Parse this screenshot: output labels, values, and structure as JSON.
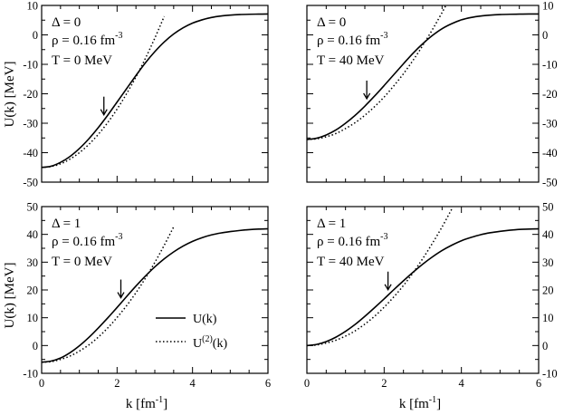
{
  "figure": {
    "xlabel": "k [fm",
    "xlabel_sup": "-1",
    "xlabel_close": "]",
    "ylabel_top": "U(k)  [MeV]",
    "ylabel_bottom": "U(k) [MeV]"
  },
  "legend": {
    "solid_label": "U(k)",
    "dotted_label_main": "U",
    "dotted_label_sup": "(2)",
    "dotted_label_tail": "(k)"
  },
  "chart_data": [
    {
      "type": "line",
      "position": "top-left",
      "xlim": [
        0,
        6
      ],
      "ylim": [
        -50,
        10
      ],
      "xticks": [
        0,
        2,
        4,
        6
      ],
      "yticks": [
        -50,
        -40,
        -30,
        -20,
        -10,
        0,
        10
      ],
      "y_tick_side": "left",
      "show_x_tick_labels": false,
      "annotations": {
        "delta": "Δ = 0",
        "rho": "ρ = 0.16 fm",
        "rho_sup": "-3",
        "temp": "T = 0 MeV"
      },
      "arrow_x": 1.65,
      "series": [
        {
          "name": "U(k)",
          "style": "solid",
          "x": [
            0.0,
            0.25,
            0.5,
            0.75,
            1.0,
            1.25,
            1.5,
            1.75,
            2.0,
            2.25,
            2.5,
            2.75,
            3.0,
            3.25,
            3.5,
            3.75,
            4.0,
            4.25,
            4.5,
            4.75,
            5.0,
            5.25,
            5.5,
            5.75,
            6.0
          ],
          "y": [
            -45.0,
            -44.6,
            -43.3,
            -41.3,
            -38.6,
            -35.3,
            -31.5,
            -27.3,
            -22.8,
            -18.3,
            -13.8,
            -9.5,
            -5.7,
            -2.4,
            0.3,
            2.4,
            4.0,
            5.1,
            5.9,
            6.4,
            6.7,
            6.9,
            7.0,
            7.05,
            7.1
          ]
        },
        {
          "name": "U(2)(k)",
          "style": "dotted",
          "x": [
            0.0,
            0.25,
            0.5,
            0.75,
            1.0,
            1.25,
            1.5,
            1.75,
            2.0,
            2.25,
            2.5,
            2.75,
            3.0,
            3.25
          ],
          "y": [
            -45.0,
            -44.7,
            -43.8,
            -42.2,
            -40.0,
            -37.2,
            -33.8,
            -29.8,
            -25.2,
            -20.0,
            -14.3,
            -8.0,
            -1.1,
            6.3
          ]
        }
      ]
    },
    {
      "type": "line",
      "position": "top-right",
      "xlim": [
        0,
        6
      ],
      "ylim": [
        -50,
        10
      ],
      "xticks": [
        0,
        2,
        4,
        6
      ],
      "yticks": [
        -50,
        -40,
        -30,
        -20,
        -10,
        0,
        10
      ],
      "y_tick_side": "right",
      "show_x_tick_labels": false,
      "annotations": {
        "delta": "Δ = 0",
        "rho": "ρ = 0.16 fm",
        "rho_sup": "-3",
        "temp": "T = 40 MeV"
      },
      "arrow_x": 1.55,
      "series": [
        {
          "name": "U(k)",
          "style": "solid",
          "x": [
            0.0,
            0.25,
            0.5,
            0.75,
            1.0,
            1.25,
            1.5,
            1.75,
            2.0,
            2.25,
            2.5,
            2.75,
            3.0,
            3.25,
            3.5,
            3.75,
            4.0,
            4.25,
            4.5,
            4.75,
            5.0,
            5.25,
            5.5,
            5.75,
            6.0
          ],
          "y": [
            -35.5,
            -35.1,
            -34.0,
            -32.3,
            -30.0,
            -27.3,
            -24.2,
            -20.8,
            -17.2,
            -13.5,
            -9.8,
            -6.2,
            -3.0,
            -0.2,
            2.1,
            3.8,
            5.1,
            5.9,
            6.4,
            6.7,
            6.9,
            7.0,
            7.05,
            7.1,
            7.1
          ]
        },
        {
          "name": "U(2)(k)",
          "style": "dotted",
          "x": [
            0.0,
            0.25,
            0.5,
            0.75,
            1.0,
            1.25,
            1.5,
            1.75,
            2.0,
            2.25,
            2.5,
            2.75,
            3.0,
            3.25,
            3.5,
            3.75
          ],
          "y": [
            -35.5,
            -35.3,
            -34.6,
            -33.5,
            -31.8,
            -29.8,
            -27.3,
            -24.4,
            -21.1,
            -17.3,
            -13.2,
            -8.6,
            -3.6,
            1.8,
            7.6,
            13.8
          ]
        }
      ]
    },
    {
      "type": "line",
      "position": "bottom-left",
      "xlim": [
        0,
        6
      ],
      "ylim": [
        -10,
        50
      ],
      "xticks": [
        0,
        2,
        4,
        6
      ],
      "yticks": [
        -10,
        0,
        10,
        20,
        30,
        40,
        50
      ],
      "y_tick_side": "left",
      "show_x_tick_labels": true,
      "annotations": {
        "delta": "Δ = 1",
        "rho": "ρ = 0.16 fm",
        "rho_sup": "-3",
        "temp": "T = 0 MeV"
      },
      "arrow_x": 2.1,
      "series": [
        {
          "name": "U(k)",
          "style": "solid",
          "x": [
            0.0,
            0.25,
            0.5,
            0.75,
            1.0,
            1.25,
            1.5,
            1.75,
            2.0,
            2.25,
            2.5,
            2.75,
            3.0,
            3.25,
            3.5,
            3.75,
            4.0,
            4.25,
            4.5,
            4.75,
            5.0,
            5.25,
            5.5,
            5.75,
            6.0
          ],
          "y": [
            -6.0,
            -5.6,
            -4.5,
            -2.6,
            -0.1,
            2.9,
            6.3,
            9.9,
            13.7,
            17.6,
            21.4,
            25.0,
            28.3,
            31.2,
            33.7,
            35.8,
            37.5,
            38.8,
            39.8,
            40.5,
            41.0,
            41.4,
            41.7,
            41.9,
            42.0
          ]
        },
        {
          "name": "U(2)(k)",
          "style": "dotted",
          "x": [
            0.0,
            0.25,
            0.5,
            0.75,
            1.0,
            1.25,
            1.5,
            1.75,
            2.0,
            2.25,
            2.5,
            2.75,
            3.0,
            3.25,
            3.5
          ],
          "y": [
            -6.0,
            -5.8,
            -5.0,
            -3.8,
            -2.0,
            0.2,
            3.0,
            6.3,
            10.1,
            14.3,
            19.0,
            24.2,
            29.9,
            36.1,
            42.7
          ]
        }
      ]
    },
    {
      "type": "line",
      "position": "bottom-right",
      "xlim": [
        0,
        6
      ],
      "ylim": [
        -10,
        50
      ],
      "xticks": [
        0,
        2,
        4,
        6
      ],
      "yticks": [
        -10,
        0,
        10,
        20,
        30,
        40,
        50
      ],
      "y_tick_side": "right",
      "show_x_tick_labels": true,
      "annotations": {
        "delta": "Δ = 1",
        "rho": "ρ = 0.16 fm",
        "rho_sup": "-3",
        "temp": "T = 40 MeV"
      },
      "arrow_x": 2.1,
      "series": [
        {
          "name": "U(k)",
          "style": "solid",
          "x": [
            0.0,
            0.25,
            0.5,
            0.75,
            1.0,
            1.25,
            1.5,
            1.75,
            2.0,
            2.25,
            2.5,
            2.75,
            3.0,
            3.25,
            3.5,
            3.75,
            4.0,
            4.25,
            4.5,
            4.75,
            5.0,
            5.25,
            5.5,
            5.75,
            6.0
          ],
          "y": [
            0.0,
            0.4,
            1.4,
            3.0,
            5.1,
            7.6,
            10.5,
            13.6,
            16.8,
            20.1,
            23.3,
            26.4,
            29.3,
            31.9,
            34.2,
            36.1,
            37.7,
            38.9,
            39.9,
            40.6,
            41.1,
            41.5,
            41.8,
            41.9,
            42.0
          ]
        },
        {
          "name": "U(2)(k)",
          "style": "dotted",
          "x": [
            0.0,
            0.25,
            0.5,
            0.75,
            1.0,
            1.25,
            1.5,
            1.75,
            2.0,
            2.25,
            2.5,
            2.75,
            3.0,
            3.25,
            3.5,
            3.75
          ],
          "y": [
            0.0,
            0.2,
            0.9,
            1.9,
            3.4,
            5.3,
            7.7,
            10.5,
            13.8,
            17.5,
            21.6,
            26.2,
            31.3,
            36.8,
            42.7,
            49.1
          ]
        }
      ]
    }
  ]
}
